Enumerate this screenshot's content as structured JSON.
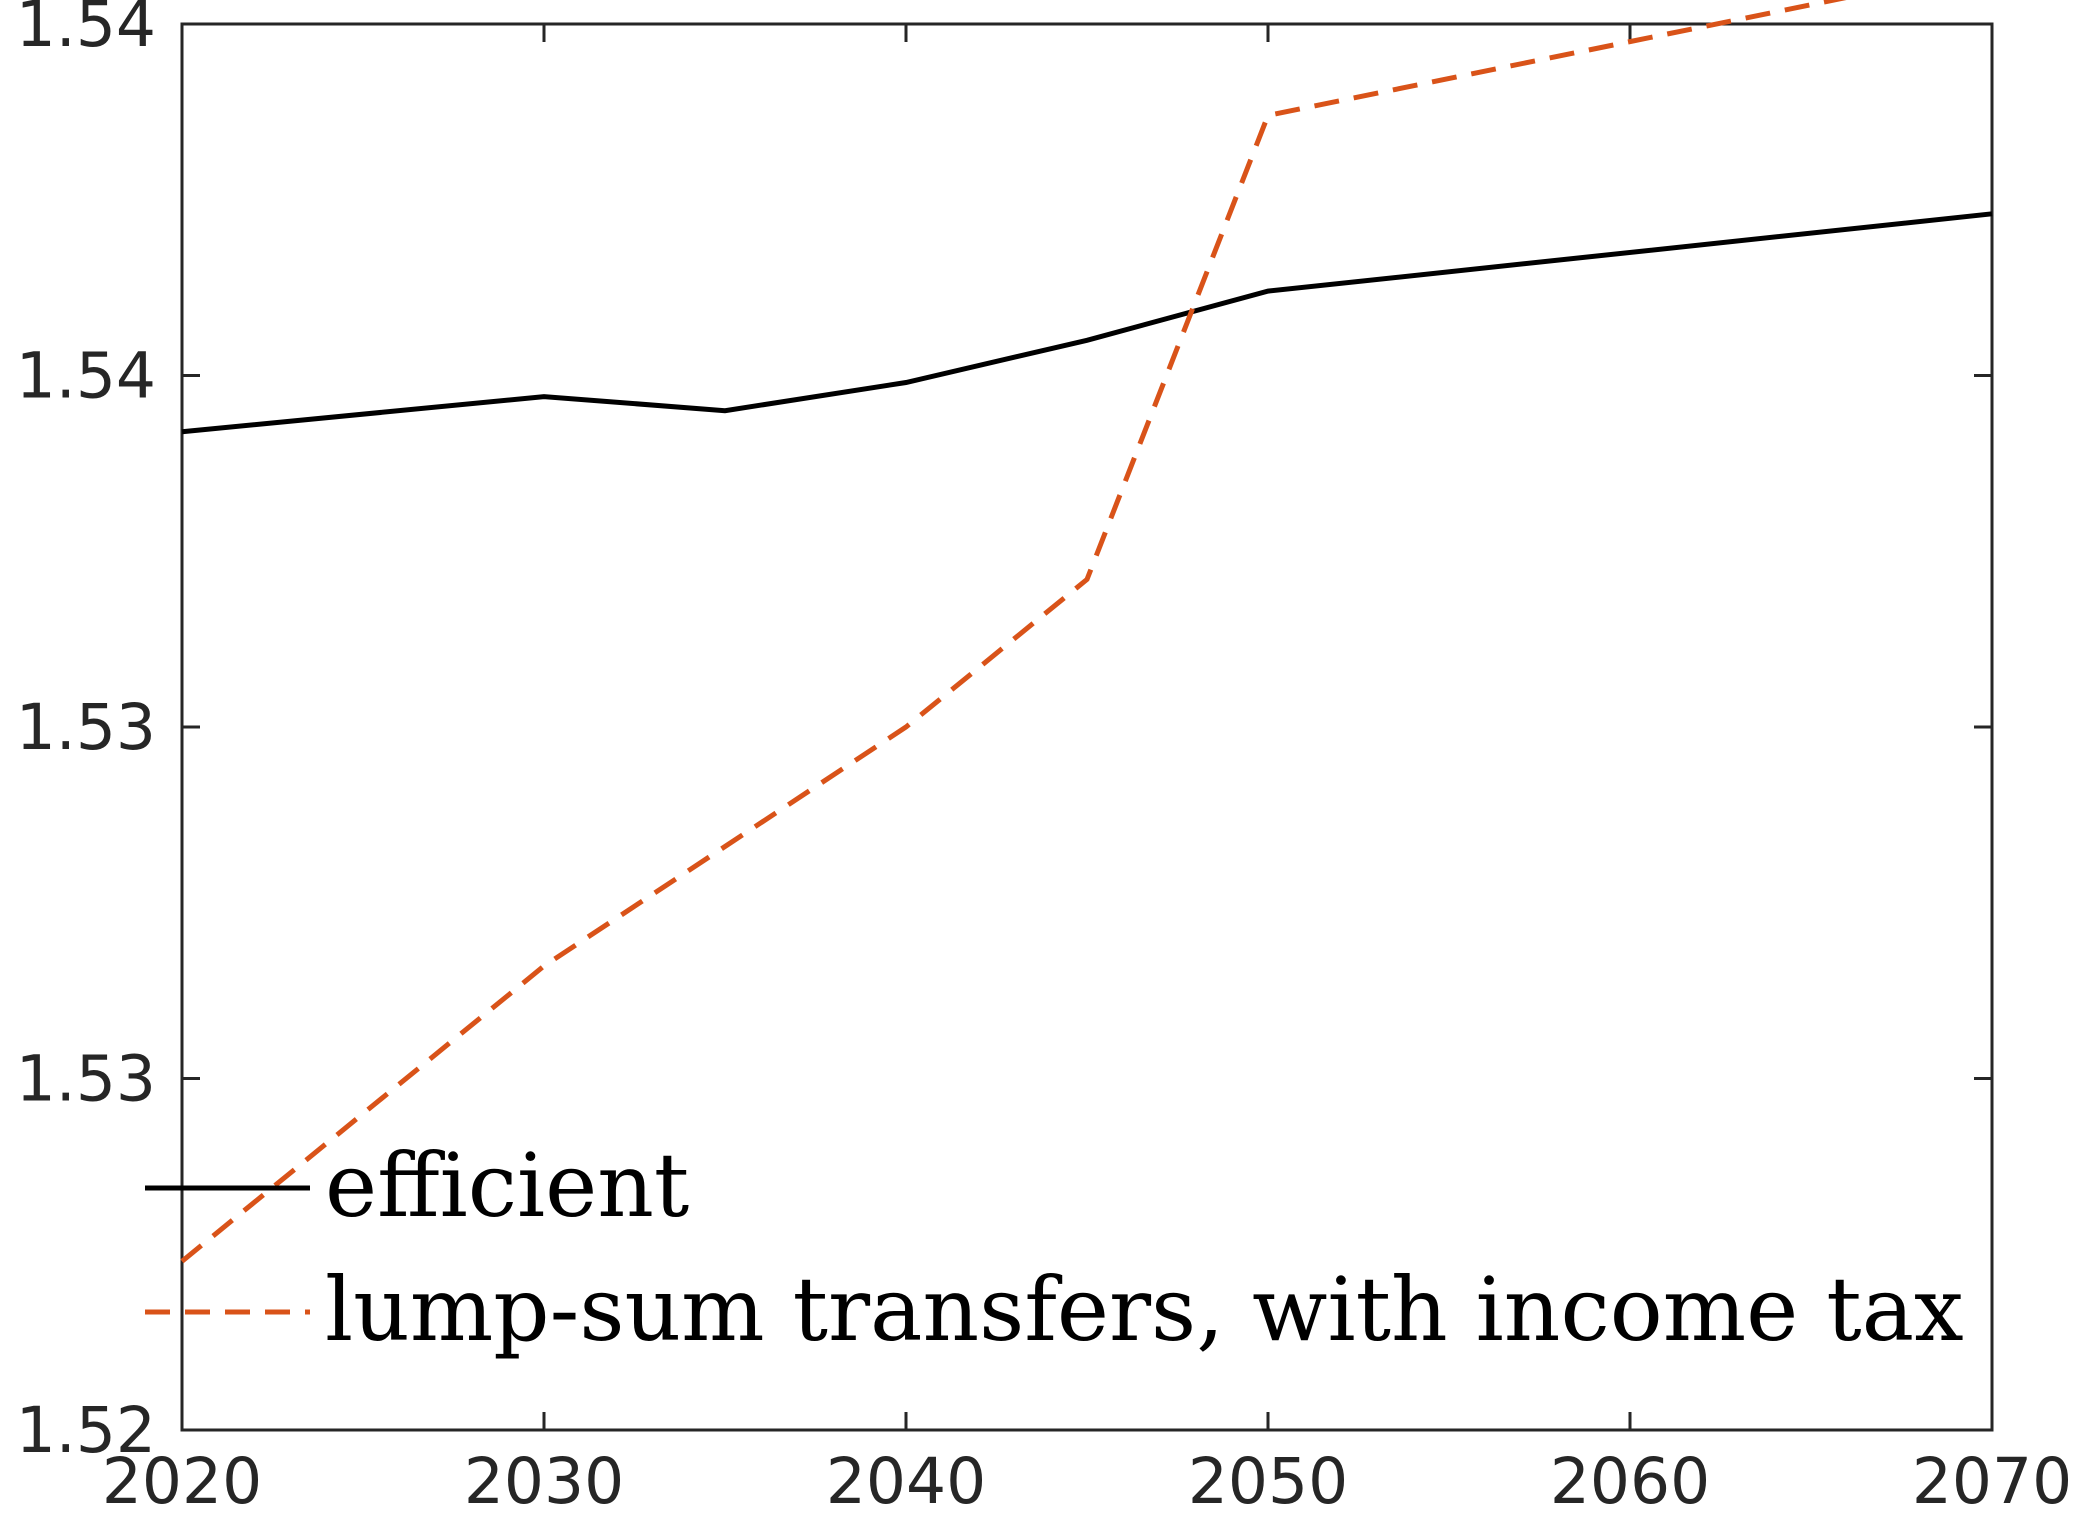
{
  "chart_data": {
    "type": "line",
    "title": "",
    "xlabel": "",
    "ylabel": "",
    "x": [
      2020,
      2030,
      2035,
      2040,
      2045,
      2050,
      2070
    ],
    "xlim": [
      2020,
      2070
    ],
    "ylim": [
      1.52,
      1.54
    ],
    "x_ticks": [
      2020,
      2030,
      2040,
      2050,
      2060,
      2070
    ],
    "x_tick_labels": [
      "2020",
      "2030",
      "2040",
      "2050",
      "2060",
      "2070"
    ],
    "y_ticks": [
      1.52,
      1.525,
      1.53,
      1.535,
      1.54
    ],
    "y_tick_labels": [
      "1.52",
      "1.53",
      "1.53",
      "1.54",
      "1.54"
    ],
    "grid": false,
    "legend_position": "bottom-left",
    "series": [
      {
        "name": "efficient",
        "values": [
          1.5342,
          1.5347,
          1.5345,
          1.5349,
          1.5355,
          1.5362,
          1.5373
        ],
        "color": "#000000",
        "style": "solid"
      },
      {
        "name": "lump-sum transfers, with income tax",
        "values": [
          1.5224,
          1.5266,
          1.5283,
          1.53,
          1.5321,
          1.5387,
          1.5408
        ],
        "color": "#D95319",
        "style": "dashed"
      }
    ]
  }
}
